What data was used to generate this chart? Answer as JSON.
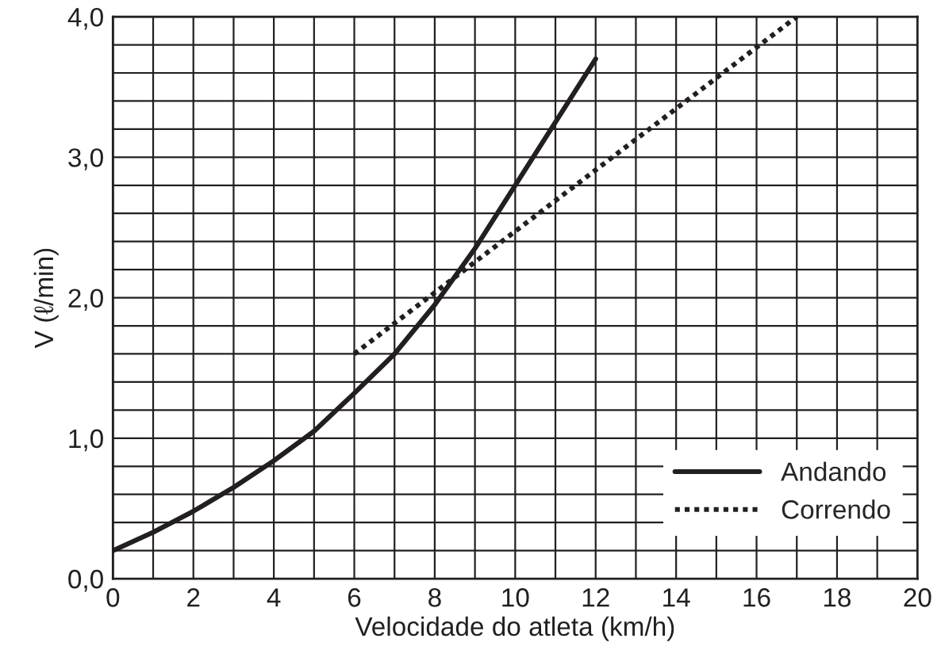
{
  "chart_data": {
    "type": "line",
    "xlabel": "Velocidade do atleta (km/h)",
    "ylabel": "V (ℓ/min)",
    "series": [
      {
        "name": "Andando",
        "color": "#231f20",
        "line_style": "solid",
        "x": [
          0,
          1,
          2,
          3,
          4,
          5,
          6,
          7,
          8,
          9,
          10,
          11,
          12
        ],
        "values": [
          0.2,
          0.33,
          0.48,
          0.65,
          0.84,
          1.05,
          1.32,
          1.6,
          1.95,
          2.35,
          2.8,
          3.25,
          3.7
        ]
      },
      {
        "name": "Correndo",
        "color": "#231f20",
        "line_style": "dotted",
        "x": [
          6,
          17
        ],
        "values": [
          1.6,
          4.0
        ]
      }
    ],
    "xlim": [
      0,
      20
    ],
    "ylim": [
      0,
      4
    ],
    "xticks": [
      0,
      {
        "value": 1,
        "label": null
      },
      2,
      {
        "value": 3,
        "label": null
      },
      4,
      {
        "value": 5,
        "label": null
      },
      6,
      {
        "value": 7,
        "label": null
      },
      8,
      {
        "value": 9,
        "label": null
      },
      10,
      {
        "value": 11,
        "label": null
      },
      12,
      {
        "value": 13,
        "label": null
      },
      14,
      {
        "value": 15,
        "label": null
      },
      16,
      {
        "value": 17,
        "label": null
      },
      18,
      {
        "value": 19,
        "label": null
      },
      20
    ],
    "yticks": [
      {
        "value": 0,
        "label": "0,0"
      },
      {
        "value": 0.2,
        "label": null
      },
      {
        "value": 0.4,
        "label": null
      },
      {
        "value": 0.6,
        "label": null
      },
      {
        "value": 0.8,
        "label": null
      },
      {
        "value": 1,
        "label": "1,0"
      },
      {
        "value": 1.2,
        "label": null
      },
      {
        "value": 1.4,
        "label": null
      },
      {
        "value": 1.6,
        "label": null
      },
      {
        "value": 1.8,
        "label": null
      },
      {
        "value": 2,
        "label": "2,0"
      },
      {
        "value": 2.2,
        "label": null
      },
      {
        "value": 2.4,
        "label": null
      },
      {
        "value": 2.6,
        "label": null
      },
      {
        "value": 2.8,
        "label": null
      },
      {
        "value": 3,
        "label": "3,0"
      },
      {
        "value": 3.2,
        "label": null
      },
      {
        "value": 3.4,
        "label": null
      },
      {
        "value": 3.6,
        "label": null
      },
      {
        "value": 3.8,
        "label": null
      },
      {
        "value": 4,
        "label": "4,0"
      }
    ],
    "grid": true,
    "legend": "bottom right"
  }
}
